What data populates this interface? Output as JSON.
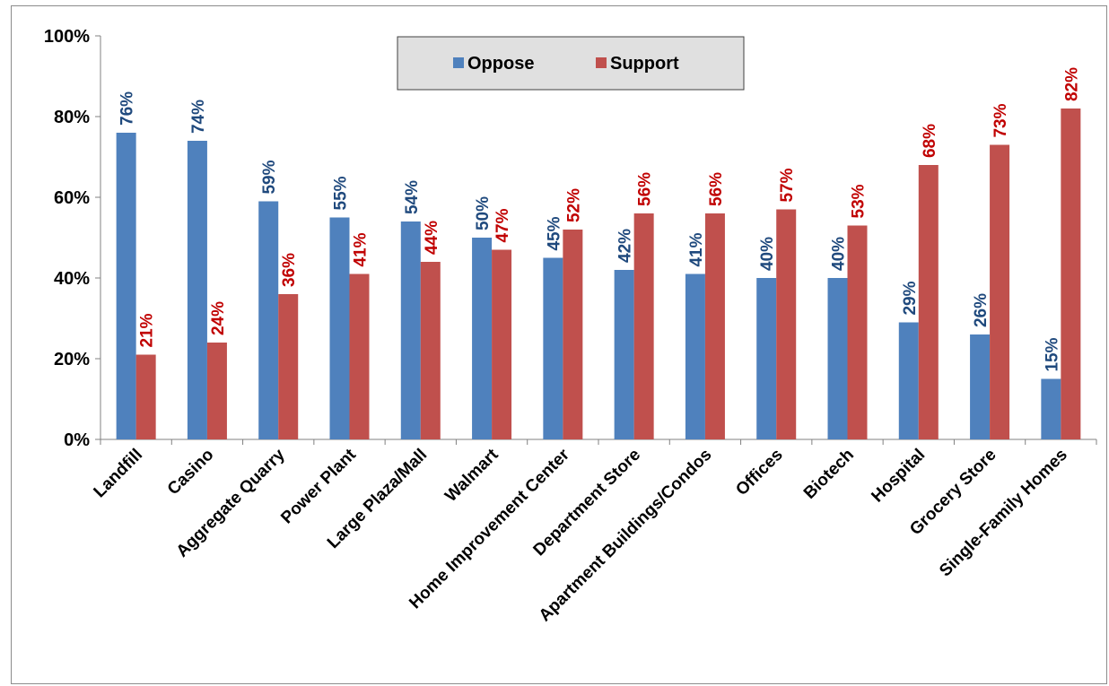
{
  "chart_data": {
    "type": "bar",
    "title": "",
    "xlabel": "",
    "ylabel": "",
    "categories": [
      "Landfill",
      "Casino",
      "Aggregate Quarry",
      "Power Plant",
      "Large Plaza/Mall",
      "Walmart",
      "Home Improvement Center",
      "Department Store",
      "Apartment Buildings/Condos",
      "Offices",
      "Biotech",
      "Hospital",
      "Grocery Store",
      "Single-Family Homes"
    ],
    "series": [
      {
        "name": "Oppose",
        "color": "#4f81bd",
        "label_color": "#1f497d",
        "values": [
          76,
          74,
          59,
          55,
          54,
          50,
          45,
          42,
          41,
          40,
          40,
          29,
          26,
          15
        ]
      },
      {
        "name": "Support",
        "color": "#c0504d",
        "label_color": "#c00000",
        "values": [
          21,
          24,
          36,
          41,
          44,
          47,
          52,
          56,
          56,
          57,
          53,
          68,
          73,
          82
        ]
      }
    ],
    "ylim": [
      0,
      100
    ],
    "yticks": [
      "0%",
      "20%",
      "40%",
      "60%",
      "80%",
      "100%"
    ],
    "value_suffix": "%",
    "grid": false,
    "legend_position": "top-center"
  }
}
